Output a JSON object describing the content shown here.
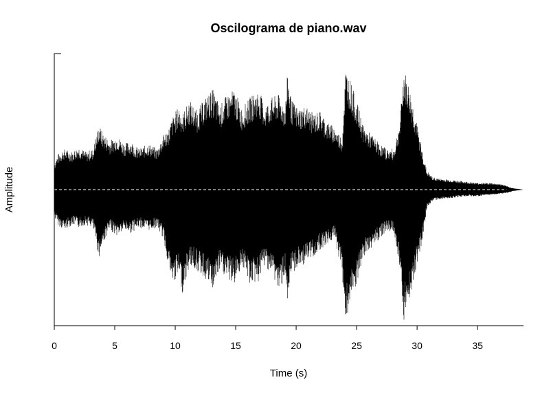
{
  "chart_data": {
    "type": "line",
    "title": "Oscilograma de piano.wav",
    "xlabel": "Time (s)",
    "ylabel": "Amplitude",
    "xlim": [
      0,
      38.8
    ],
    "ylim": [
      -1,
      1
    ],
    "x_ticks": [
      0,
      5,
      10,
      15,
      20,
      25,
      30,
      35
    ],
    "x_tick_labels": [
      "0",
      "5",
      "10",
      "15",
      "20",
      "25",
      "30",
      "35"
    ],
    "grid": false,
    "zero_line": "dashed",
    "colors": {
      "waveform": "#000000",
      "zero_line": "#ffffff",
      "axis": "#000000"
    },
    "series": [
      {
        "envelope_time": [
          0,
          0.3,
          0.8,
          1.5,
          2.0,
          2.6,
          3.2,
          3.7,
          4.0,
          4.6,
          5.2,
          5.8,
          6.3,
          7.0,
          7.8,
          8.5,
          9.0,
          9.5,
          9.7,
          10.3,
          10.6,
          11.2,
          11.8,
          12.5,
          13.1,
          13.7,
          14.3,
          14.9,
          15.5,
          16.2,
          16.9,
          17.4,
          18.0,
          18.6,
          19.1,
          19.3,
          19.6,
          20.2,
          20.8,
          21.4,
          22.0,
          22.6,
          23.2,
          23.8,
          24.1,
          24.5,
          25.1,
          25.6,
          26.3,
          26.9,
          27.5,
          28.1,
          28.6,
          28.9,
          29.4,
          30.0,
          30.4,
          30.8,
          31.3,
          32.0,
          33.0,
          34.0,
          35.0,
          36.0,
          37.0,
          37.6,
          38.0,
          38.8
        ],
        "envelope_pos": [
          0.2,
          0.26,
          0.3,
          0.28,
          0.32,
          0.28,
          0.3,
          0.48,
          0.42,
          0.36,
          0.4,
          0.34,
          0.36,
          0.3,
          0.34,
          0.3,
          0.4,
          0.46,
          0.52,
          0.62,
          0.56,
          0.66,
          0.58,
          0.68,
          0.74,
          0.62,
          0.7,
          0.74,
          0.6,
          0.68,
          0.74,
          0.62,
          0.68,
          0.7,
          0.62,
          0.88,
          0.66,
          0.6,
          0.62,
          0.56,
          0.58,
          0.5,
          0.46,
          0.38,
          0.9,
          0.8,
          0.62,
          0.46,
          0.4,
          0.34,
          0.3,
          0.3,
          0.52,
          0.9,
          0.74,
          0.48,
          0.3,
          0.14,
          0.09,
          0.08,
          0.07,
          0.06,
          0.05,
          0.05,
          0.04,
          0.02,
          0.01,
          0.0
        ],
        "envelope_neg": [
          -0.2,
          -0.26,
          -0.3,
          -0.26,
          -0.28,
          -0.26,
          -0.28,
          -0.5,
          -0.4,
          -0.3,
          -0.34,
          -0.3,
          -0.32,
          -0.28,
          -0.3,
          -0.28,
          -0.36,
          -0.58,
          -0.7,
          -0.64,
          -0.76,
          -0.56,
          -0.6,
          -0.66,
          -0.74,
          -0.6,
          -0.66,
          -0.7,
          -0.56,
          -0.7,
          -0.68,
          -0.56,
          -0.62,
          -0.76,
          -0.62,
          -0.94,
          -0.62,
          -0.58,
          -0.54,
          -0.5,
          -0.44,
          -0.4,
          -0.36,
          -0.62,
          -0.98,
          -0.84,
          -0.68,
          -0.5,
          -0.42,
          -0.36,
          -0.3,
          -0.32,
          -0.58,
          -0.96,
          -0.8,
          -0.54,
          -0.4,
          -0.14,
          -0.08,
          -0.07,
          -0.06,
          -0.05,
          -0.05,
          -0.04,
          -0.03,
          -0.02,
          -0.01,
          0.0
        ]
      }
    ]
  }
}
